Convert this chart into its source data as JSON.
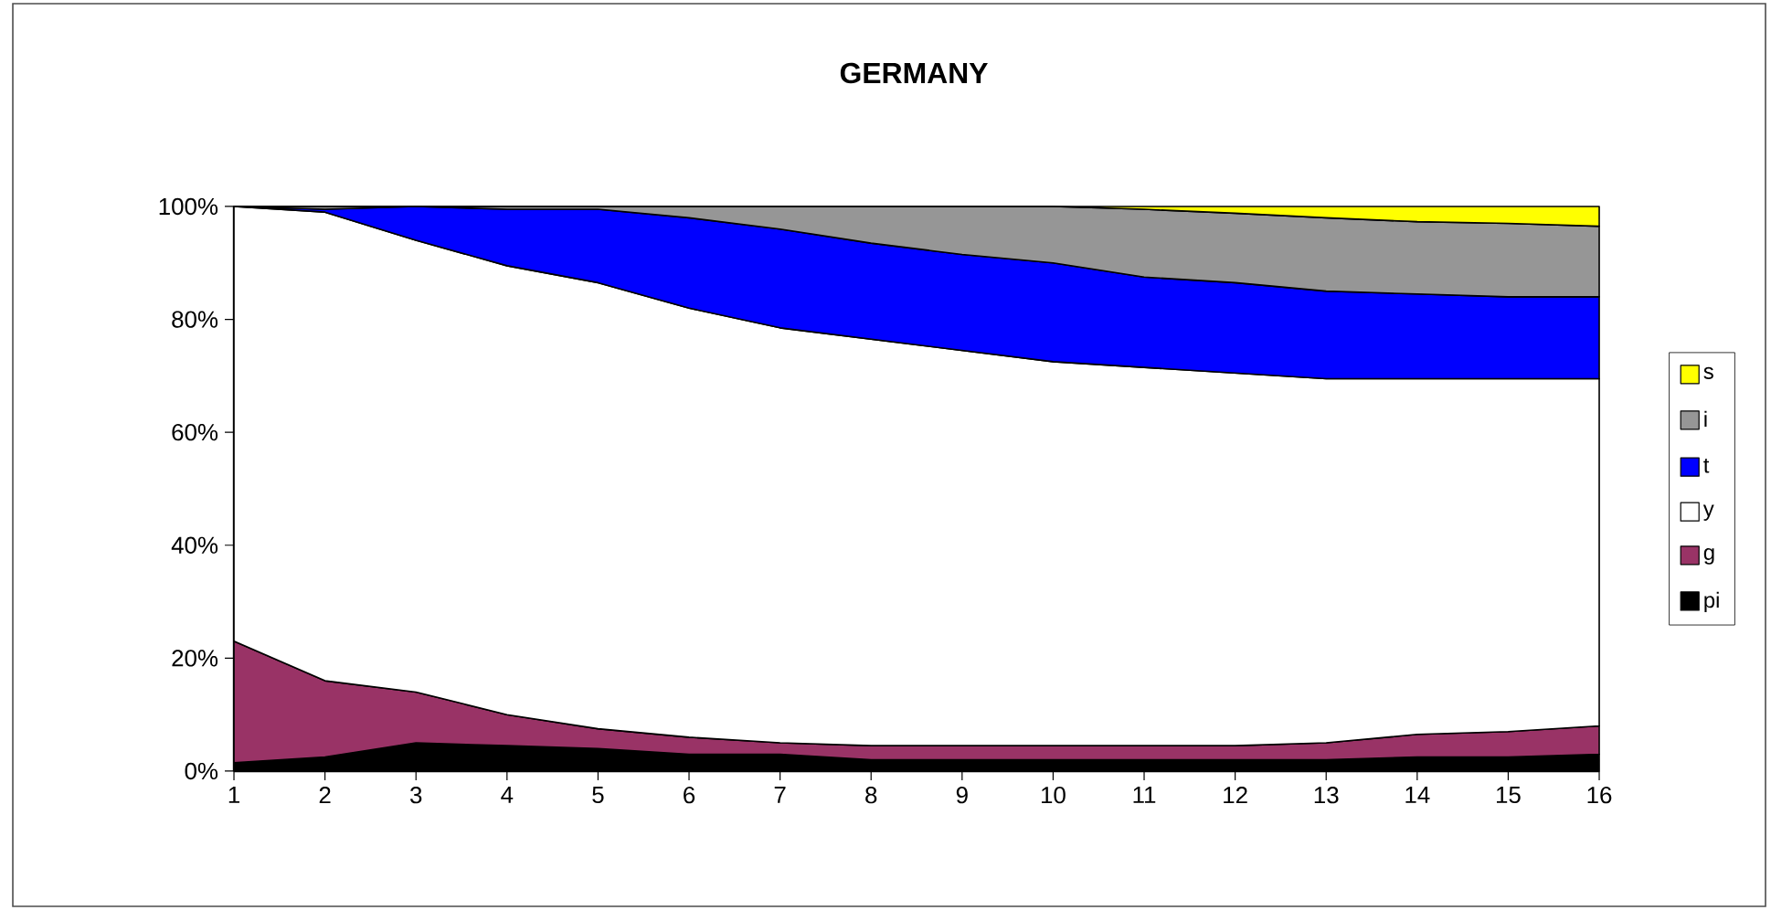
{
  "chart_data": {
    "type": "area",
    "title": "GERMANY",
    "stacked": true,
    "legend": "right",
    "grid": false,
    "marker": "none",
    "x": [
      1,
      2,
      3,
      4,
      5,
      6,
      7,
      8,
      9,
      10,
      11,
      12,
      13,
      14,
      15,
      16
    ],
    "xlim": [
      1,
      16
    ],
    "xticks": [
      1,
      2,
      3,
      4,
      5,
      6,
      7,
      8,
      9,
      10,
      11,
      12,
      13,
      14,
      15,
      16
    ],
    "ylim": [
      0,
      100
    ],
    "yticks": [
      {
        "value": 0,
        "label": "0%"
      },
      {
        "value": 20,
        "label": "20%"
      },
      {
        "value": 40,
        "label": "40%"
      },
      {
        "value": 60,
        "label": "60%"
      },
      {
        "value": 80,
        "label": "80%"
      },
      {
        "value": 100,
        "label": "100%"
      }
    ],
    "series": [
      {
        "name": "pi",
        "color": "#000000",
        "values": [
          1.5,
          2.5,
          5,
          4.5,
          4,
          3,
          3,
          2,
          2,
          2,
          2,
          2,
          2,
          2.5,
          2.5,
          3
        ]
      },
      {
        "name": "g",
        "color": "#993366",
        "values": [
          21.5,
          13.5,
          9,
          5.5,
          3.5,
          3,
          2,
          2.5,
          2.5,
          2.5,
          2.5,
          2.5,
          3,
          4,
          4.5,
          5
        ]
      },
      {
        "name": "y",
        "color": "#ffffff",
        "values": [
          77,
          83,
          80,
          79.5,
          79,
          76,
          73.5,
          72,
          70,
          68,
          67,
          66,
          64.5,
          63,
          62.5,
          61.5
        ]
      },
      {
        "name": "t",
        "color": "#0000ff",
        "values": [
          0,
          0.5,
          6,
          10,
          13,
          16,
          17.5,
          17,
          17,
          17.5,
          16,
          16,
          15.5,
          15,
          14.5,
          14.5
        ]
      },
      {
        "name": "i",
        "color": "#969696",
        "values": [
          0,
          0.5,
          0,
          0.5,
          0.5,
          2,
          4,
          6.5,
          8.5,
          10,
          12,
          12.3,
          13,
          12.8,
          13,
          12.5
        ]
      },
      {
        "name": "s",
        "color": "#ffff00",
        "values": [
          0,
          0,
          0,
          0,
          0,
          0,
          0,
          0,
          0,
          0,
          0.5,
          1.2,
          2,
          2.7,
          3,
          3.5
        ]
      }
    ]
  }
}
